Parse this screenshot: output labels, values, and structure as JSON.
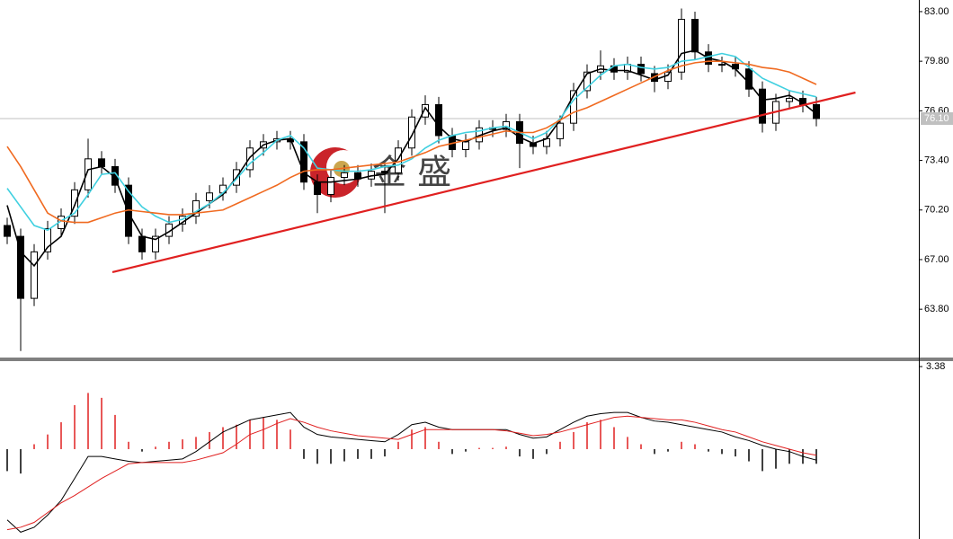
{
  "chart_data": {
    "type": "candlestick",
    "open": [
      69.2,
      68.5,
      64.5,
      67.5,
      69,
      69.8,
      71.5,
      73.5,
      73,
      71.8,
      68.5,
      67.5,
      68.5,
      69.3,
      69.8,
      70.8,
      71.3,
      71.8,
      72.8,
      74.2,
      74.6,
      74.8,
      74.6,
      72,
      71.2,
      72.3,
      72.6,
      72.2,
      72.7,
      72.6,
      74.2,
      76.2,
      77,
      75,
      74.1,
      74.6,
      75.5,
      75.4,
      75.9,
      74.5,
      74.3,
      74.8,
      75.8,
      77.9,
      79.1,
      79.5,
      79.1,
      79.6,
      79,
      78.5,
      79.1,
      82.5,
      80.4,
      79.6,
      79.6,
      79.3,
      78,
      75.8,
      77.2,
      77.4,
      77
    ],
    "high": [
      69.7,
      69.0,
      68.0,
      69.5,
      70.3,
      72.0,
      74.8,
      74.0,
      73.5,
      72.3,
      69.0,
      69.0,
      69.8,
      70.3,
      71.3,
      71.8,
      72.3,
      73.3,
      74.7,
      75.1,
      75.3,
      75.3,
      75.1,
      72.5,
      72.8,
      73.1,
      73.1,
      73.2,
      73.2,
      74.7,
      76.7,
      77.6,
      77.5,
      75.5,
      75.1,
      76.0,
      76.0,
      76.4,
      76.4,
      75.0,
      75.3,
      76.3,
      78.4,
      79.6,
      80.5,
      80.0,
      80.1,
      80.1,
      79.5,
      79.6,
      83.2,
      83.0,
      80.9,
      80.1,
      80.1,
      79.8,
      78.5,
      77.7,
      77.9,
      77.9,
      77.5
    ],
    "low": [
      68.0,
      61.1,
      64.0,
      67.0,
      68.5,
      69.3,
      71.0,
      72.5,
      71.3,
      68.0,
      67.0,
      67.0,
      68.0,
      68.8,
      69.3,
      70.3,
      70.8,
      71.3,
      72.3,
      73.7,
      74.1,
      74.1,
      71.5,
      70.0,
      70.7,
      71.8,
      71.7,
      71.7,
      70.0,
      72.1,
      73.7,
      75.7,
      74.5,
      73.6,
      73.6,
      74.1,
      74.9,
      74.9,
      72.9,
      73.8,
      73.8,
      74.3,
      75.3,
      77.4,
      78.6,
      78.6,
      78.6,
      78.5,
      77.8,
      78.0,
      78.6,
      79.9,
      79.1,
      79.1,
      78.8,
      77.5,
      75.2,
      75.3,
      76.7,
      76.5,
      75.6
    ],
    "close": [
      68.5,
      64.5,
      67.5,
      69,
      69.8,
      71.5,
      73.5,
      73,
      71.8,
      68.5,
      67.5,
      68.5,
      69.3,
      69.8,
      70.8,
      71.3,
      71.8,
      72.8,
      74.2,
      74.6,
      74.8,
      74.6,
      72,
      71.2,
      72.3,
      72.6,
      72.2,
      72.7,
      72.6,
      74.2,
      76.2,
      77,
      75,
      74.1,
      74.6,
      75.5,
      75.4,
      75.9,
      74.5,
      74.3,
      74.8,
      75.8,
      77.9,
      79.1,
      79.5,
      79.1,
      79.6,
      79,
      78.5,
      79.1,
      82.5,
      80.4,
      79.6,
      79.6,
      79.3,
      78,
      75.8,
      77.2,
      77.4,
      77,
      76.1
    ],
    "up_color": "#ffffff",
    "down_color": "#000000",
    "series": [
      {
        "color": "#000000",
        "values": [
          70.5,
          67.5,
          66.6,
          67.8,
          68.5,
          70.5,
          72.8,
          73,
          72.3,
          70,
          68.5,
          68.3,
          68.8,
          69.4,
          70,
          70.6,
          71.2,
          72.3,
          73.6,
          74.4,
          74.7,
          74.8,
          72.6,
          72,
          72,
          72.1,
          72.2,
          72.4,
          72.5,
          73.5,
          75,
          76.8,
          75.6,
          74.8,
          74.6,
          75,
          75.3,
          75.5,
          74.9,
          74.5,
          74.8,
          76,
          77.6,
          79,
          79.3,
          79.2,
          79.2,
          78.9,
          78.6,
          78.9,
          80.3,
          80.5,
          80,
          79.8,
          79.3,
          78.4,
          77.3,
          77.4,
          77.6,
          77.1,
          76.4
        ]
      },
      {
        "color": "#40d0e0",
        "values": [
          71.6,
          70.4,
          69.2,
          68.9,
          69.5,
          70,
          71.2,
          72.5,
          72.6,
          71.4,
          70.4,
          69.8,
          69.4,
          69.6,
          70.1,
          70.6,
          71.3,
          72.2,
          73.2,
          73.9,
          74.7,
          75,
          74.2,
          72.9,
          72.8,
          72.7,
          72.7,
          72.8,
          73,
          73.1,
          73.5,
          74.2,
          74.7,
          75,
          75.2,
          75.3,
          75.5,
          75.6,
          75.2,
          74.8,
          75.2,
          76.1,
          77.3,
          78.1,
          78.9,
          79.5,
          79.6,
          79.4,
          79.3,
          79.4,
          79.8,
          79.9,
          80.1,
          80.3,
          80.1,
          79.4,
          78.7,
          78.3,
          77.9,
          77.7,
          77.5
        ]
      },
      {
        "color": "#f06a20",
        "values": [
          74.3,
          73,
          71.5,
          70,
          69.5,
          69.4,
          69.4,
          69.7,
          70,
          70.2,
          70.1,
          70,
          69.9,
          69.9,
          70,
          70.1,
          70.2,
          70.6,
          71,
          71.4,
          71.8,
          72.3,
          72.7,
          72.8,
          72.8,
          72.9,
          73,
          73.1,
          73.2,
          73.3,
          73.6,
          73.9,
          74.3,
          74.5,
          74.7,
          74.9,
          75.1,
          75.3,
          75.2,
          75.2,
          75.5,
          76,
          76.5,
          76.8,
          77.2,
          77.6,
          78,
          78.4,
          78.8,
          79.2,
          79.5,
          79.7,
          79.8,
          79.8,
          79.7,
          79.6,
          79.4,
          79.3,
          79.1,
          78.7,
          78.3
        ]
      }
    ],
    "ylim": [
      60.68,
      83.75
    ],
    "yticks": [
      {
        "value": 83,
        "label": "83.00"
      },
      {
        "value": 79.8,
        "label": "79.80"
      },
      {
        "value": 76.6,
        "label": "76.60"
      },
      {
        "value": 73.4,
        "label": "73.40"
      },
      {
        "value": 70.2,
        "label": "70.20"
      },
      {
        "value": 67,
        "label": "67.00"
      },
      {
        "value": 63.8,
        "label": "63.80"
      }
    ],
    "current_price": {
      "value": 76.1,
      "label": "76.10"
    },
    "trendline": {
      "color": "#e02020",
      "x": [
        7.8,
        62.9
      ],
      "y": [
        66.19,
        77.78
      ]
    },
    "watermark": "金 盛",
    "indicator": {
      "type": "macd",
      "ylim": [
        -3.68,
        3.64
      ],
      "yticks": [
        {
          "value": 3.38,
          "label": "3.38"
        }
      ],
      "histogram": {
        "up_color": "#e02020",
        "down_color": "#000000",
        "values": [
          -0.9,
          -1,
          0.2,
          0.6,
          1.1,
          1.8,
          2.3,
          2.1,
          1.4,
          0.3,
          -0.1,
          0.1,
          0.3,
          0.4,
          0.5,
          0.7,
          0.9,
          1,
          1.2,
          1.3,
          1.2,
          0.8,
          -0.4,
          -0.6,
          -0.6,
          -0.5,
          -0.4,
          -0.4,
          -0.3,
          0.3,
          0.8,
          0.9,
          0.3,
          -0.2,
          -0.1,
          0.05,
          0.05,
          0.1,
          -0.3,
          -0.4,
          -0.2,
          0.3,
          0.7,
          1.1,
          1.2,
          0.9,
          0.5,
          0.2,
          -0.2,
          -0.1,
          0.3,
          0.2,
          -0.1,
          -0.2,
          -0.3,
          -0.5,
          -0.9,
          -0.8,
          -0.6,
          -0.6,
          -0.6
        ]
      },
      "series": [
        {
          "color": "#000000",
          "values": [
            -2.9,
            -3.4,
            -3.2,
            -2.7,
            -2.1,
            -1.2,
            -0.3,
            -0.3,
            -0.4,
            -0.5,
            -0.55,
            -0.5,
            -0.45,
            -0.4,
            -0.1,
            0.3,
            0.7,
            0.95,
            1.2,
            1.3,
            1.4,
            1.5,
            0.9,
            0.6,
            0.5,
            0.45,
            0.4,
            0.35,
            0.3,
            0.6,
            1,
            1.1,
            0.9,
            0.8,
            0.8,
            0.8,
            0.8,
            0.8,
            0.6,
            0.45,
            0.5,
            0.8,
            1.1,
            1.35,
            1.45,
            1.5,
            1.5,
            1.3,
            1.15,
            1.1,
            1,
            0.9,
            0.8,
            0.7,
            0.5,
            0.35,
            0.15,
            0,
            -0.1,
            -0.3,
            -0.45
          ]
        },
        {
          "color": "#e02020",
          "values": [
            -3.3,
            -3.2,
            -3,
            -2.6,
            -2.2,
            -1.9,
            -1.55,
            -1.2,
            -0.9,
            -0.6,
            -0.55,
            -0.55,
            -0.55,
            -0.55,
            -0.45,
            -0.3,
            -0.15,
            0.2,
            0.6,
            0.8,
            1.05,
            1.25,
            1.1,
            0.9,
            0.75,
            0.65,
            0.55,
            0.5,
            0.45,
            0.4,
            0.6,
            0.8,
            0.8,
            0.8,
            0.8,
            0.8,
            0.8,
            0.75,
            0.65,
            0.55,
            0.6,
            0.7,
            0.85,
            1,
            1.15,
            1.3,
            1.35,
            1.3,
            1.25,
            1.2,
            1.2,
            1.1,
            0.95,
            0.8,
            0.7,
            0.5,
            0.3,
            0.15,
            0,
            -0.15,
            -0.25
          ]
        }
      ]
    }
  }
}
